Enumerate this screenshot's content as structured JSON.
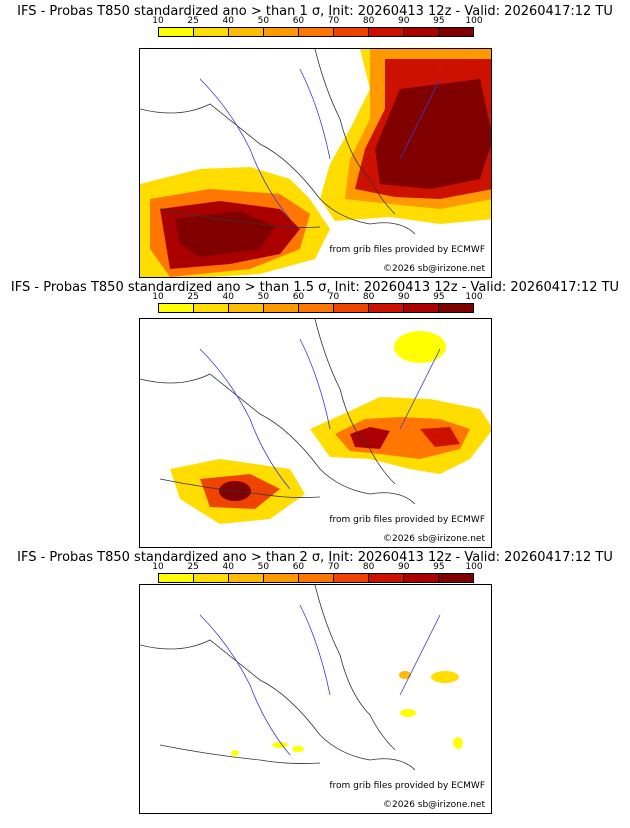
{
  "panels": [
    {
      "title": "IFS - Probas T850  standardized ano > than 1 σ, Init: 20260413 12z - Valid: 20260417:12 TU",
      "credit_source": "from grib files provided by ECMWF",
      "credit_copyright": "©2026 sb@irizone.net"
    },
    {
      "title": "IFS - Probas T850  standardized ano > than 1.5 σ, Init: 20260413 12z - Valid: 20260417:12 TU",
      "credit_source": "from grib files provided by ECMWF",
      "credit_copyright": "©2026 sb@irizone.net"
    },
    {
      "title": "IFS - Probas T850  standardized ano > than 2 σ, Init: 20260413 12z - Valid: 20260417:12 TU",
      "credit_source": "from grib files provided by ECMWF",
      "credit_copyright": "©2026 sb@irizone.net"
    }
  ],
  "colorbar": {
    "ticks": [
      "10",
      "25",
      "40",
      "50",
      "60",
      "70",
      "80",
      "90",
      "95",
      "100"
    ],
    "colors": [
      "#ffff00",
      "#ffdd00",
      "#ffbb00",
      "#ff9900",
      "#ff7700",
      "#ee4400",
      "#cc1100",
      "#aa0000",
      "#800000"
    ]
  }
}
